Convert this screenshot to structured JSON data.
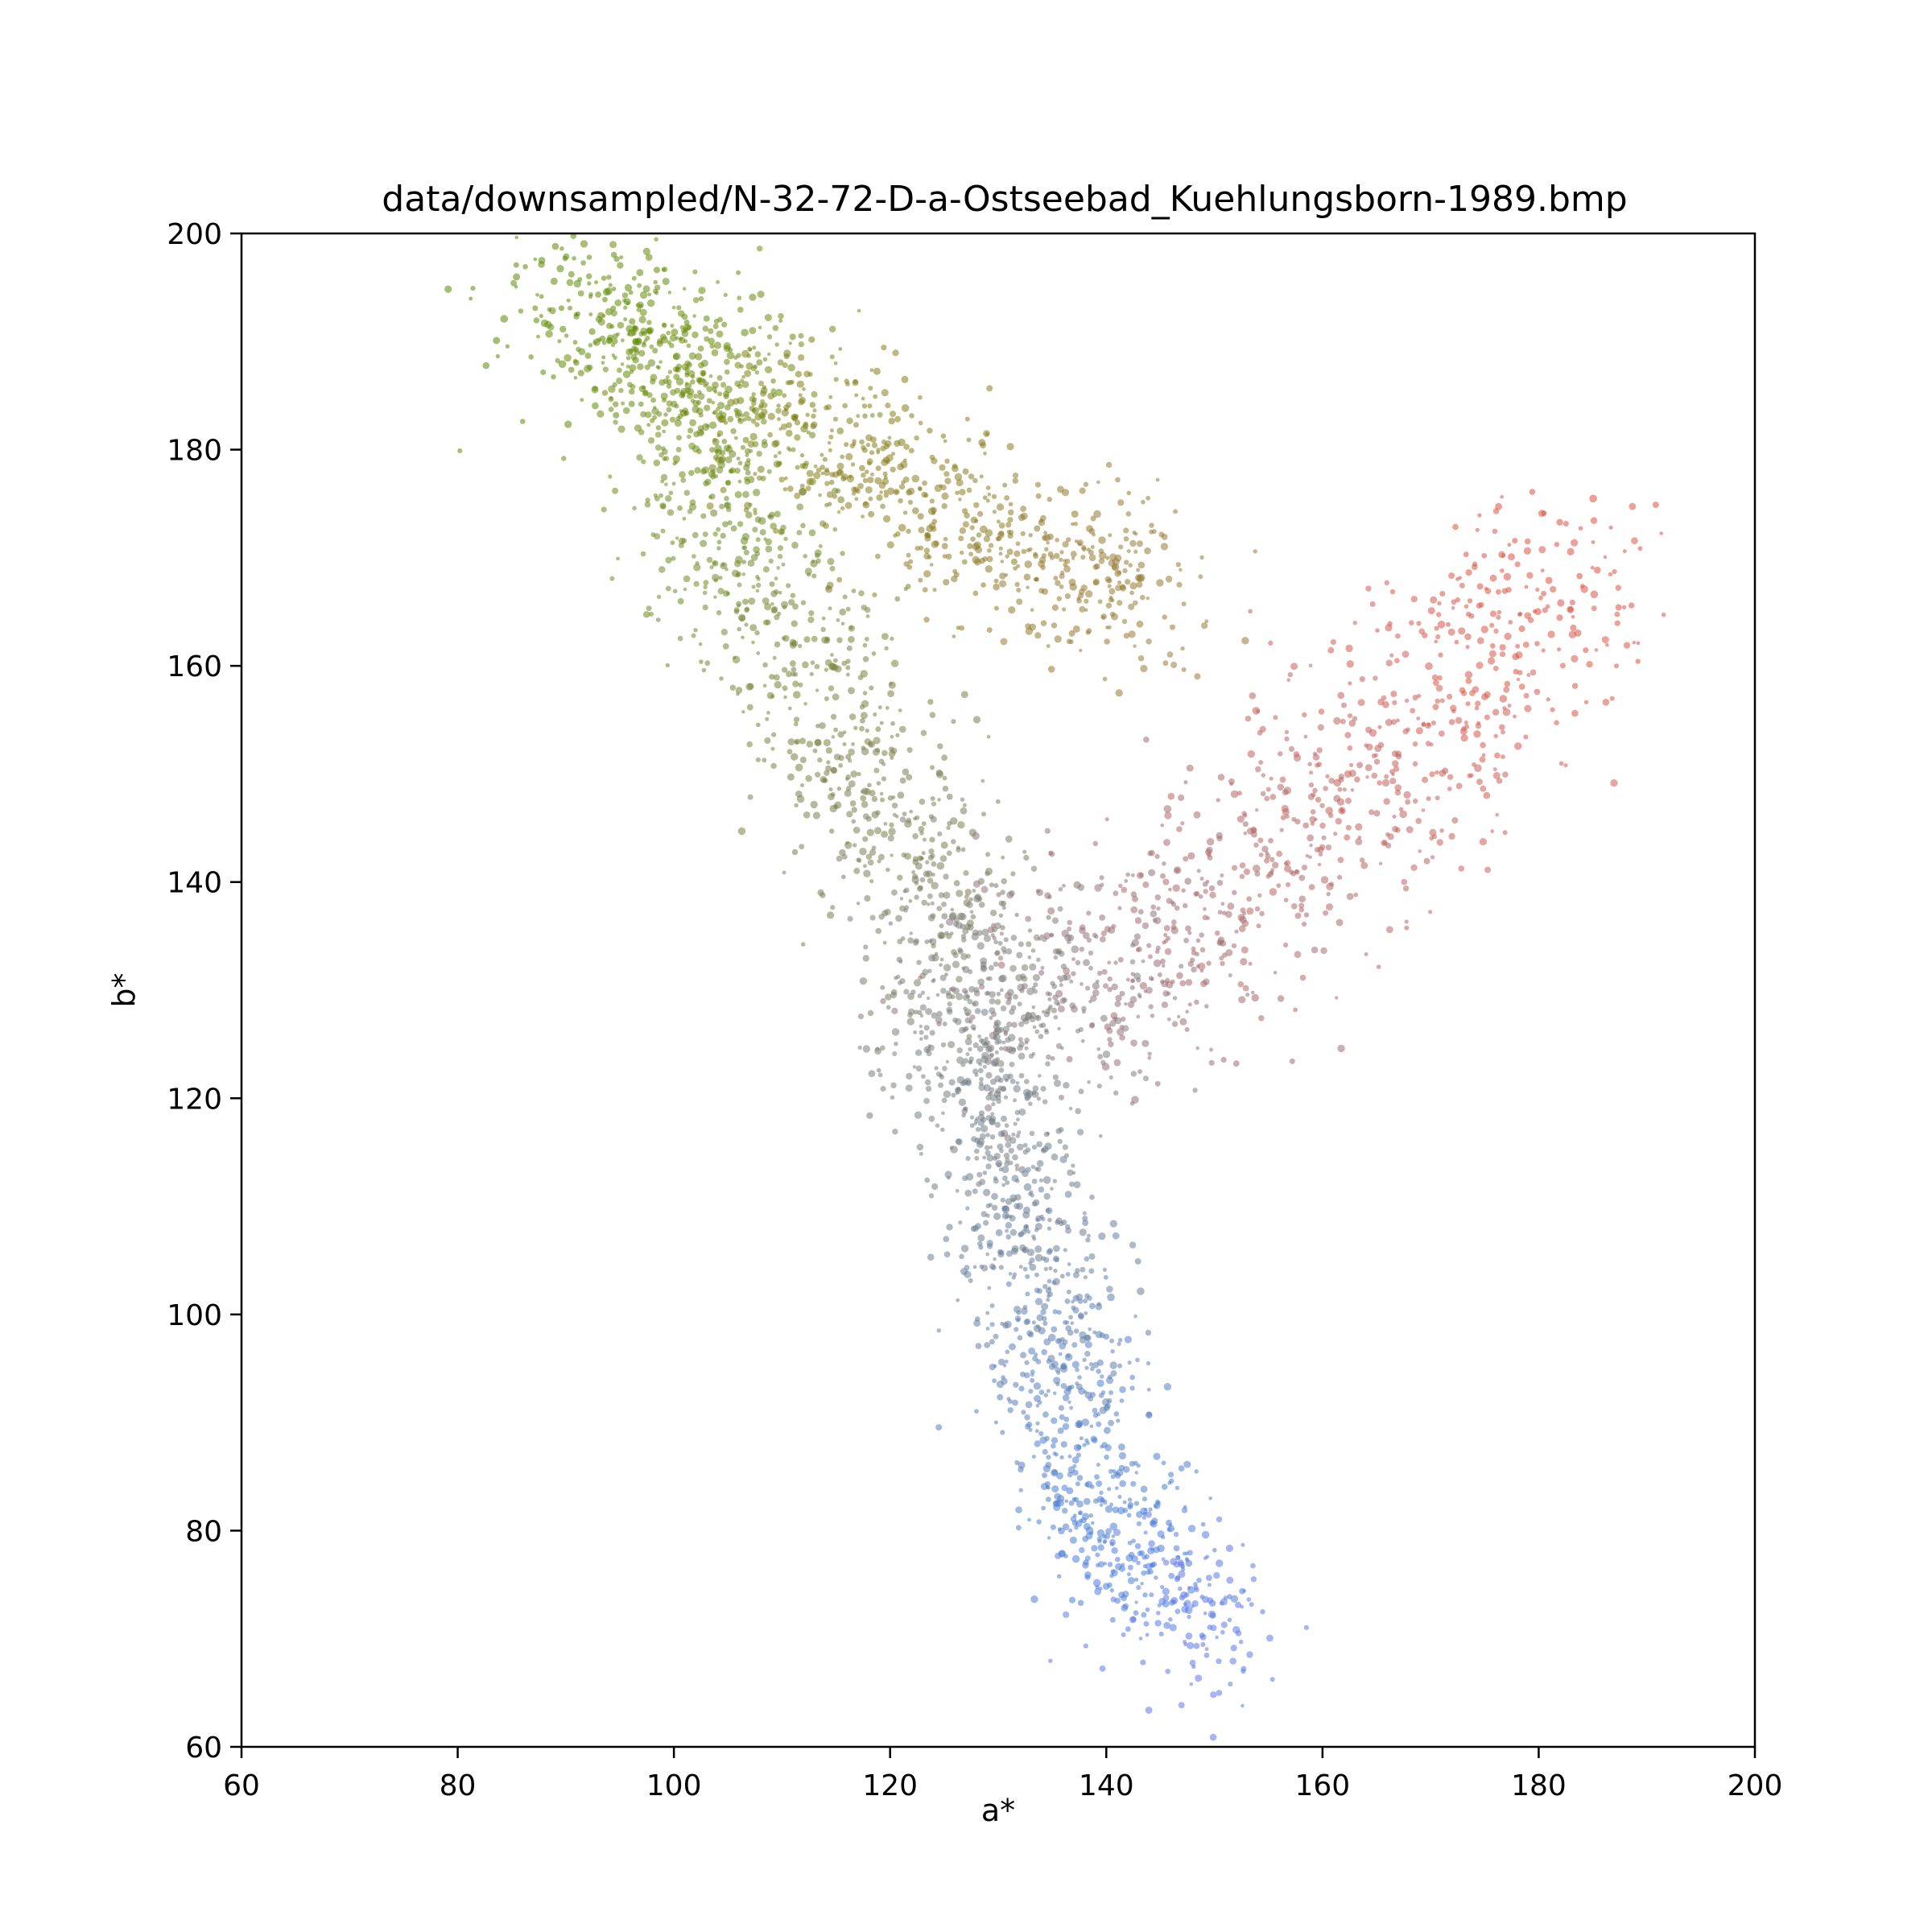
{
  "chart_data": {
    "type": "scatter",
    "title": "data/downsampled/N-32-72-D-a-Ostseebad_Kuehlungsborn-1989.bmp",
    "xlabel": "a*",
    "ylabel": "b*",
    "xlim": [
      60,
      200
    ],
    "ylim": [
      60,
      200
    ],
    "xticks": [
      "60",
      "80",
      "100",
      "120",
      "140",
      "160",
      "180",
      "200"
    ],
    "yticks": [
      "60",
      "80",
      "100",
      "120",
      "140",
      "160",
      "180",
      "200"
    ],
    "grid": false,
    "marker": "small dots, colored by their own pixel color",
    "series": [
      {
        "description_points": [
          {
            "a": 90,
            "b": 194,
            "color": "#5a8a00"
          },
          {
            "a": 100,
            "b": 188,
            "color": "#6a8a08"
          },
          {
            "a": 115,
            "b": 180,
            "color": "#857f18"
          },
          {
            "a": 130,
            "b": 172,
            "color": "#8d7a25"
          },
          {
            "a": 145,
            "b": 166,
            "color": "#9a7a3a"
          },
          {
            "a": 105,
            "b": 172,
            "color": "#6f8a25"
          },
          {
            "a": 115,
            "b": 155,
            "color": "#7b8040"
          },
          {
            "a": 125,
            "b": 138,
            "color": "#7d7d62"
          },
          {
            "a": 128,
            "b": 125,
            "color": "#7a8080"
          },
          {
            "a": 140,
            "b": 132,
            "color": "#96707a"
          },
          {
            "a": 155,
            "b": 142,
            "color": "#b06868"
          },
          {
            "a": 170,
            "b": 155,
            "color": "#d05c55"
          },
          {
            "a": 183,
            "b": 170,
            "color": "#e0503a"
          },
          {
            "a": 132,
            "b": 110,
            "color": "#6f8090"
          },
          {
            "a": 136,
            "b": 95,
            "color": "#5c7fb8"
          },
          {
            "a": 140,
            "b": 80,
            "color": "#4880d8"
          },
          {
            "a": 150,
            "b": 70,
            "color": "#6278e8"
          }
        ]
      }
    ]
  },
  "colors": {
    "axis": "#000000",
    "background": "#ffffff"
  }
}
